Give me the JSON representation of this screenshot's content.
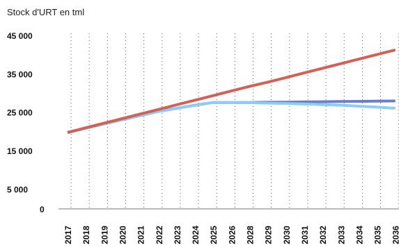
{
  "chart_data": {
    "type": "line",
    "title": "Stock d'URT en tml",
    "xlabel": "",
    "ylabel": "",
    "categories": [
      "2017",
      "2018",
      "2019",
      "2020",
      "2021",
      "2022",
      "2023",
      "2024",
      "2025",
      "2026",
      "2028",
      "2029",
      "2030",
      "2031",
      "2032",
      "2033",
      "2034",
      "2035",
      "2036"
    ],
    "y_ticks": [
      "45 000",
      "35 000",
      "25 000",
      "15 000",
      "5 000",
      "0"
    ],
    "y_tick_values": [
      45000,
      35000,
      25000,
      15000,
      5000,
      0
    ],
    "ylim": [
      0,
      45000
    ],
    "grid": "vertical dotted",
    "series": [
      {
        "color": "#6a7fc5",
        "values": [
          19900,
          21000,
          22100,
          23200,
          24300,
          25400,
          26200,
          27000,
          27700,
          27700,
          27700,
          27750,
          27800,
          27850,
          27900,
          27950,
          28000,
          28050,
          28100
        ]
      },
      {
        "color": "#8ecdf3",
        "values": [
          19900,
          21000,
          22100,
          23200,
          24300,
          25400,
          26200,
          27000,
          27700,
          27700,
          27650,
          27550,
          27450,
          27300,
          27150,
          27000,
          26750,
          26500,
          26200
        ]
      },
      {
        "color": "#d46055",
        "values": [
          19900,
          21100,
          22300,
          23500,
          24700,
          25900,
          27100,
          28300,
          29500,
          30700,
          31900,
          33000,
          34200,
          35400,
          36600,
          37800,
          39000,
          40200,
          41400
        ]
      }
    ]
  }
}
